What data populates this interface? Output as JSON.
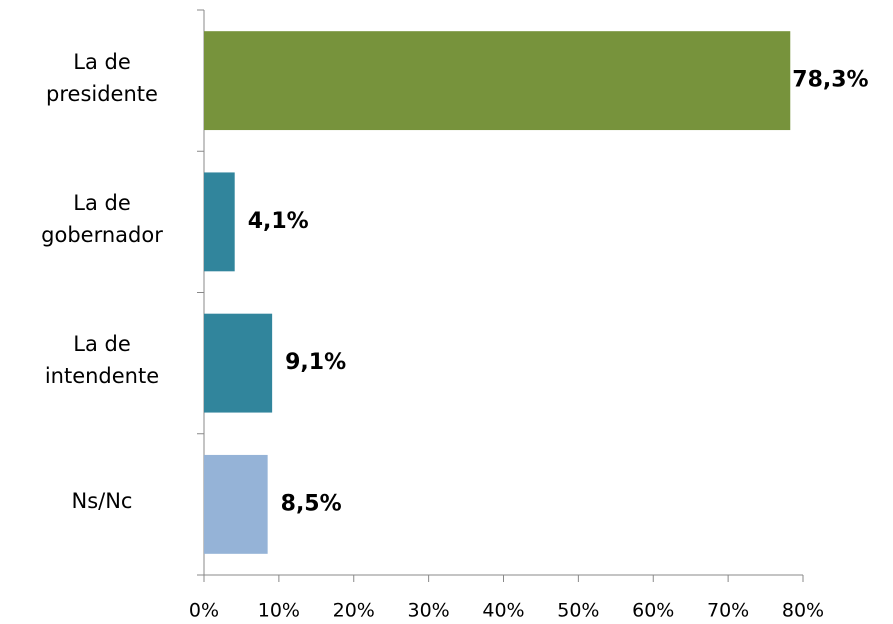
{
  "chart_data": {
    "type": "hbar",
    "categories": [
      "La de presidente",
      "La de gobernador",
      "La de intendente",
      "Ns/Nc"
    ],
    "values": [
      78.3,
      4.1,
      9.1,
      8.5
    ],
    "value_labels": [
      "78,3%",
      "4,1%",
      "9,1%",
      "8,5%"
    ],
    "colors": [
      "#77933c",
      "#31859c",
      "#31859c",
      "#95b3d7"
    ],
    "xlim": [
      0,
      80
    ],
    "xticks": [
      {
        "value": 0,
        "label": "0%"
      },
      {
        "value": 10,
        "label": "10%"
      },
      {
        "value": 20,
        "label": "20%"
      },
      {
        "value": 30,
        "label": "30%"
      },
      {
        "value": 40,
        "label": "40%"
      },
      {
        "value": 50,
        "label": "50%"
      },
      {
        "value": 60,
        "label": "60%"
      },
      {
        "value": 70,
        "label": "70%"
      },
      {
        "value": 80,
        "label": "80%"
      }
    ]
  }
}
